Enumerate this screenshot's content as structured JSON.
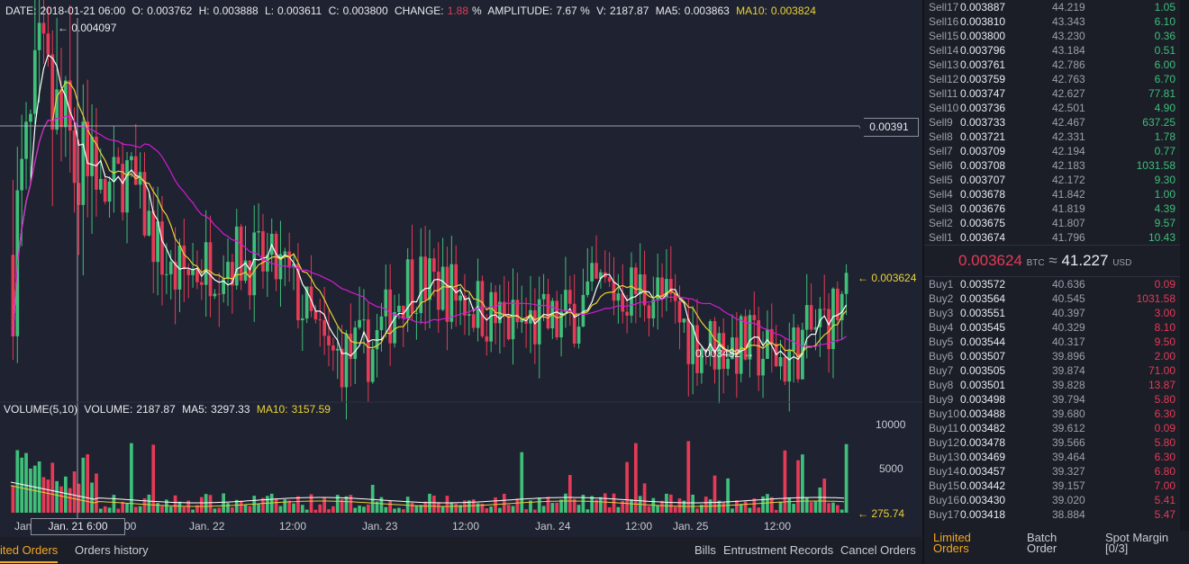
{
  "header": {
    "date_label": "DATE:",
    "date": "2018-01-21  06:00",
    "o_label": "O:",
    "o": "0.003762",
    "h_label": "H:",
    "h": "0.003888",
    "l_label": "L:",
    "l": "0.003611",
    "c_label": "C:",
    "c": "0.003800",
    "change_label": "CHANGE:",
    "change": "1.88",
    "change_unit": "%",
    "amp_label": "AMPLITUDE:",
    "amp": "7.67 %",
    "v_label": "V:",
    "v": "2187.87",
    "ma5_label": "MA5:",
    "ma5": "0.003863",
    "ma10_label": "MA10:",
    "ma10": "0.003824"
  },
  "volume_header": {
    "title": "VOLUME(5,10)",
    "vol_label": "VOLUME:",
    "vol": "2187.87",
    "ma5_label": "MA5:",
    "ma5": "3297.33",
    "ma10_label": "MA10:",
    "ma10": "3157.59"
  },
  "annotations": {
    "high": "← 0.004097",
    "low": "0.003482 →",
    "crosshair_price": "0.00391",
    "last_price": "← 0.003624",
    "last_volume": "← 275.74",
    "crosshair_time": "Jan. 21  6:00"
  },
  "axis": {
    "x_ticks": [
      "Jan",
      "00",
      "Jan. 22",
      "12:00",
      "Jan. 23",
      "12:00",
      "Jan. 24",
      "12:00",
      "Jan. 25",
      "12:00"
    ],
    "vol_ticks": [
      "10000",
      "5000"
    ]
  },
  "chart_data": {
    "type": "candlestick",
    "pair": "BTC",
    "price_range": [
      0.00345,
      0.00411
    ],
    "ma_colors": {
      "ma5": "#ffffff",
      "ma10": "#e8d338",
      "ma30": "#d21cd6"
    },
    "up_color": "#3fbf7a",
    "down_color": "#e63a56",
    "volume_range": [
      0,
      10500
    ]
  },
  "orderbook": {
    "sell": [
      {
        "label": "Sell17",
        "price": "0.003887",
        "usd": "44.219",
        "amount": "1.05"
      },
      {
        "label": "Sell16",
        "price": "0.003810",
        "usd": "43.343",
        "amount": "6.10"
      },
      {
        "label": "Sell15",
        "price": "0.003800",
        "usd": "43.230",
        "amount": "0.36"
      },
      {
        "label": "Sell14",
        "price": "0.003796",
        "usd": "43.184",
        "amount": "0.51"
      },
      {
        "label": "Sell13",
        "price": "0.003761",
        "usd": "42.786",
        "amount": "6.00"
      },
      {
        "label": "Sell12",
        "price": "0.003759",
        "usd": "42.763",
        "amount": "6.70"
      },
      {
        "label": "Sell11",
        "price": "0.003747",
        "usd": "42.627",
        "amount": "77.81"
      },
      {
        "label": "Sell10",
        "price": "0.003736",
        "usd": "42.501",
        "amount": "4.90"
      },
      {
        "label": "Sell9",
        "price": "0.003733",
        "usd": "42.467",
        "amount": "637.25"
      },
      {
        "label": "Sell8",
        "price": "0.003721",
        "usd": "42.331",
        "amount": "1.78"
      },
      {
        "label": "Sell7",
        "price": "0.003709",
        "usd": "42.194",
        "amount": "0.77"
      },
      {
        "label": "Sell6",
        "price": "0.003708",
        "usd": "42.183",
        "amount": "1031.58"
      },
      {
        "label": "Sell5",
        "price": "0.003707",
        "usd": "42.172",
        "amount": "9.30"
      },
      {
        "label": "Sell4",
        "price": "0.003678",
        "usd": "41.842",
        "amount": "1.00"
      },
      {
        "label": "Sell3",
        "price": "0.003676",
        "usd": "41.819",
        "amount": "4.39"
      },
      {
        "label": "Sell2",
        "price": "0.003675",
        "usd": "41.807",
        "amount": "9.57"
      },
      {
        "label": "Sell1",
        "price": "0.003674",
        "usd": "41.796",
        "amount": "10.43"
      }
    ],
    "mid": {
      "price": "0.003624",
      "unit": "BTC",
      "approx": "≈",
      "usd": "41.227",
      "usd_unit": "USD"
    },
    "buy": [
      {
        "label": "Buy1",
        "price": "0.003572",
        "usd": "40.636",
        "amount": "0.09"
      },
      {
        "label": "Buy2",
        "price": "0.003564",
        "usd": "40.545",
        "amount": "1031.58"
      },
      {
        "label": "Buy3",
        "price": "0.003551",
        "usd": "40.397",
        "amount": "3.00"
      },
      {
        "label": "Buy4",
        "price": "0.003545",
        "usd": "40.329",
        "amount": "8.10"
      },
      {
        "label": "Buy5",
        "price": "0.003544",
        "usd": "40.317",
        "amount": "9.50"
      },
      {
        "label": "Buy6",
        "price": "0.003507",
        "usd": "39.896",
        "amount": "2.00"
      },
      {
        "label": "Buy7",
        "price": "0.003505",
        "usd": "39.874",
        "amount": "71.00"
      },
      {
        "label": "Buy8",
        "price": "0.003501",
        "usd": "39.828",
        "amount": "13.87"
      },
      {
        "label": "Buy9",
        "price": "0.003498",
        "usd": "39.794",
        "amount": "5.80"
      },
      {
        "label": "Buy10",
        "price": "0.003488",
        "usd": "39.680",
        "amount": "6.30"
      },
      {
        "label": "Buy11",
        "price": "0.003482",
        "usd": "39.612",
        "amount": "0.09"
      },
      {
        "label": "Buy12",
        "price": "0.003478",
        "usd": "39.566",
        "amount": "5.80"
      },
      {
        "label": "Buy13",
        "price": "0.003469",
        "usd": "39.464",
        "amount": "6.30"
      },
      {
        "label": "Buy14",
        "price": "0.003457",
        "usd": "39.327",
        "amount": "6.80"
      },
      {
        "label": "Buy15",
        "price": "0.003442",
        "usd": "39.157",
        "amount": "7.00"
      },
      {
        "label": "Buy16",
        "price": "0.003430",
        "usd": "39.020",
        "amount": "5.41"
      },
      {
        "label": "Buy17",
        "price": "0.003418",
        "usd": "38.884",
        "amount": "5.47"
      }
    ]
  },
  "bottom_tabs": {
    "left": [
      "ited Orders",
      "Orders history"
    ],
    "right": [
      "Bills",
      "Entrustment Records",
      "Cancel Orders"
    ]
  },
  "right_tabs": [
    {
      "l1": "Limited",
      "l2": "Orders"
    },
    {
      "l1": "Batch",
      "l2": "Order"
    },
    {
      "l1": "Spot Margin",
      "l2": "[0/3]"
    }
  ]
}
